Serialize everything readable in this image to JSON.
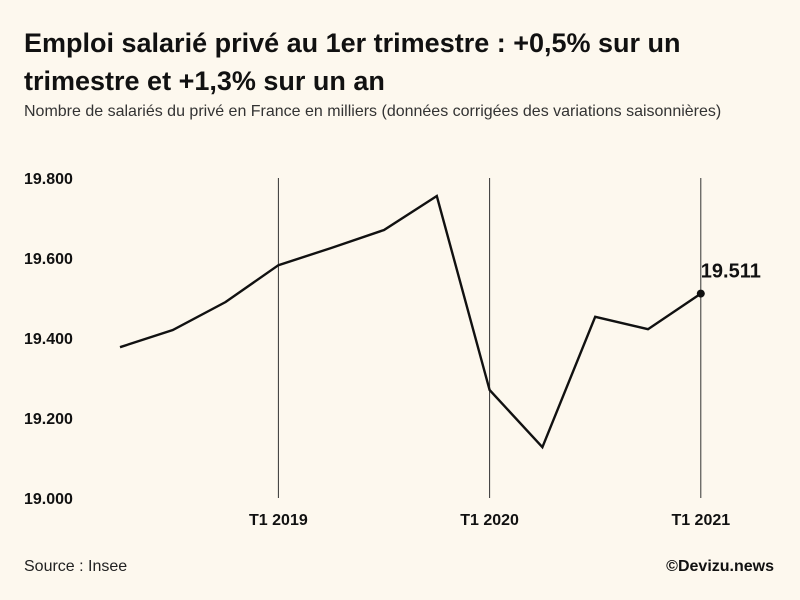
{
  "title": "Emploi salarié privé au 1er trimestre : +0,5% sur un trimestre et +1,3% sur un an",
  "subtitle": "Nombre de salariés du privé en France en milliers (données corrigées des variations saisonnières)",
  "source": "Source : Insee",
  "brand": "©Devizu.news",
  "colors": {
    "background": "#fdf8ee",
    "line": "#111111",
    "gridline": "#333333"
  },
  "chart_data": {
    "type": "line",
    "title": "Emploi salarié privé au 1er trimestre : +0,5% sur un trimestre et +1,3% sur un an",
    "ylabel": "",
    "xlabel": "",
    "ylim": [
      19000,
      19800
    ],
    "yticks": [
      19000,
      19200,
      19400,
      19600,
      19800
    ],
    "ytick_labels": [
      "19.000",
      "19.200",
      "19.400",
      "19.600",
      "19.800"
    ],
    "xticks": [
      {
        "label": "T1 2019",
        "x": "2019-Q1"
      },
      {
        "label": "T1 2020",
        "x": "2020-Q1"
      },
      {
        "label": "T1 2021",
        "x": "2021-Q1"
      }
    ],
    "grid": "vertical lines at T1 ticks",
    "series": [
      {
        "x": [
          "2018-Q2",
          "2018-Q3",
          "2018-Q4",
          "2019-Q1",
          "2019-Q2",
          "2019-Q3",
          "2019-Q4",
          "2020-Q1",
          "2020-Q2",
          "2020-Q3",
          "2020-Q4",
          "2021-Q1"
        ],
        "values": [
          19377,
          19420,
          19490,
          19582,
          19625,
          19670,
          19755,
          19270,
          19127,
          19453,
          19422,
          19511
        ]
      }
    ],
    "annotations": [
      {
        "x": "2021-Q1",
        "value": 19511,
        "text": "19.511"
      }
    ]
  }
}
